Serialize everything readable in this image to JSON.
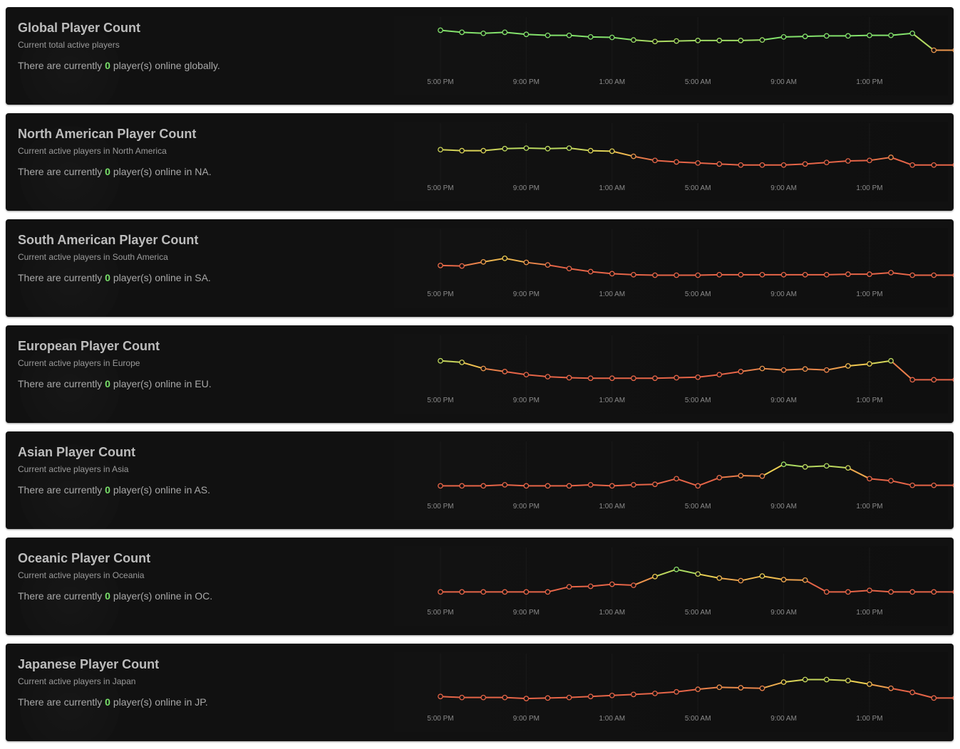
{
  "colors": {
    "green": "#84e26c",
    "yellow": "#f1cf52",
    "red": "#e66548",
    "count": "#79e06a"
  },
  "panels": [
    {
      "title": "Global Player Count",
      "subtitle": "Current total active players",
      "status_prefix": "There are currently ",
      "count": "0",
      "status_suffix": " player(s) online globally."
    },
    {
      "title": "North American Player Count",
      "subtitle": "Current active players in North America",
      "status_prefix": "There are currently ",
      "count": "0",
      "status_suffix": " player(s) online in NA."
    },
    {
      "title": "South American Player Count",
      "subtitle": "Current active players in South America",
      "status_prefix": "There are currently ",
      "count": "0",
      "status_suffix": " player(s) online in SA."
    },
    {
      "title": "European Player Count",
      "subtitle": "Current active players in Europe",
      "status_prefix": "There are currently ",
      "count": "0",
      "status_suffix": " player(s) online in EU."
    },
    {
      "title": "Asian Player Count",
      "subtitle": "Current active players in Asia",
      "status_prefix": "There are currently ",
      "count": "0",
      "status_suffix": " player(s) online in AS."
    },
    {
      "title": "Oceanic Player Count",
      "subtitle": "Current active players in Oceania",
      "status_prefix": "There are currently ",
      "count": "0",
      "status_suffix": " player(s) online in OC."
    },
    {
      "title": "Japanese Player Count",
      "subtitle": "Current active players in Japan",
      "status_prefix": "There are currently ",
      "count": "0",
      "status_suffix": " player(s) online in JP."
    }
  ],
  "chart_data": [
    {
      "type": "line",
      "title": "",
      "xlabel": "",
      "ylabel": "",
      "grid": false,
      "legend": "none",
      "x_ticks": [
        "5:00 PM",
        "9:00 PM",
        "1:00 AM",
        "5:00 AM",
        "9:00 AM",
        "1:00 PM"
      ],
      "ylim": [
        0,
        100
      ],
      "values": [
        91,
        87,
        85,
        87,
        83,
        81,
        81,
        78,
        77,
        72,
        69,
        70,
        71,
        71,
        71,
        72,
        78,
        79,
        80,
        80,
        81,
        81,
        85,
        52,
        52
      ]
    },
    {
      "type": "line",
      "title": "",
      "xlabel": "",
      "ylabel": "",
      "grid": false,
      "legend": "none",
      "x_ticks": [
        "5:00 PM",
        "9:00 PM",
        "1:00 AM",
        "5:00 AM",
        "9:00 AM",
        "1:00 PM"
      ],
      "ylim": [
        0,
        100
      ],
      "values": [
        65,
        63,
        63,
        67,
        68,
        67,
        68,
        63,
        62,
        52,
        44,
        41,
        39,
        37,
        35,
        35,
        35,
        37,
        40,
        43,
        44,
        50,
        35,
        35,
        35
      ]
    },
    {
      "type": "line",
      "title": "",
      "xlabel": "",
      "ylabel": "",
      "grid": false,
      "legend": "none",
      "x_ticks": [
        "5:00 PM",
        "9:00 PM",
        "1:00 AM",
        "5:00 AM",
        "9:00 AM",
        "1:00 PM"
      ],
      "ylim": [
        0,
        100
      ],
      "values": [
        46,
        45,
        53,
        60,
        52,
        47,
        40,
        34,
        30,
        28,
        27,
        27,
        27,
        28,
        28,
        28,
        28,
        28,
        28,
        29,
        29,
        32,
        27,
        27,
        27
      ]
    },
    {
      "type": "line",
      "title": "",
      "xlabel": "",
      "ylabel": "",
      "grid": false,
      "legend": "none",
      "x_ticks": [
        "5:00 PM",
        "9:00 PM",
        "1:00 AM",
        "5:00 AM",
        "9:00 AM",
        "1:00 PM"
      ],
      "ylim": [
        0,
        100
      ],
      "values": [
        67,
        64,
        52,
        46,
        40,
        36,
        34,
        33,
        33,
        33,
        33,
        34,
        35,
        40,
        46,
        52,
        49,
        51,
        49,
        57,
        61,
        67,
        30,
        30,
        30
      ]
    },
    {
      "type": "line",
      "title": "",
      "xlabel": "",
      "ylabel": "",
      "grid": false,
      "legend": "none",
      "x_ticks": [
        "5:00 PM",
        "9:00 PM",
        "1:00 AM",
        "5:00 AM",
        "9:00 AM",
        "1:00 PM"
      ],
      "ylim": [
        0,
        100
      ],
      "values": [
        30,
        30,
        30,
        32,
        30,
        30,
        30,
        32,
        30,
        32,
        33,
        44,
        30,
        46,
        50,
        49,
        72,
        67,
        69,
        65,
        44,
        40,
        31,
        31,
        31
      ]
    },
    {
      "type": "line",
      "title": "",
      "xlabel": "",
      "ylabel": "",
      "grid": false,
      "legend": "none",
      "x_ticks": [
        "5:00 PM",
        "9:00 PM",
        "1:00 AM",
        "5:00 AM",
        "9:00 AM",
        "1:00 PM"
      ],
      "ylim": [
        0,
        100
      ],
      "values": [
        30,
        30,
        30,
        30,
        30,
        30,
        40,
        41,
        45,
        43,
        60,
        74,
        65,
        57,
        52,
        61,
        54,
        53,
        30,
        30,
        33,
        30,
        30,
        30,
        30
      ]
    },
    {
      "type": "line",
      "title": "",
      "xlabel": "",
      "ylabel": "",
      "grid": false,
      "legend": "none",
      "x_ticks": [
        "5:00 PM",
        "9:00 PM",
        "1:00 AM",
        "5:00 AM",
        "9:00 AM",
        "1:00 PM"
      ],
      "ylim": [
        0,
        100
      ],
      "values": [
        33,
        31,
        31,
        31,
        29,
        30,
        31,
        33,
        35,
        37,
        39,
        42,
        47,
        51,
        50,
        49,
        61,
        66,
        66,
        64,
        57,
        49,
        41,
        30,
        30
      ]
    }
  ]
}
